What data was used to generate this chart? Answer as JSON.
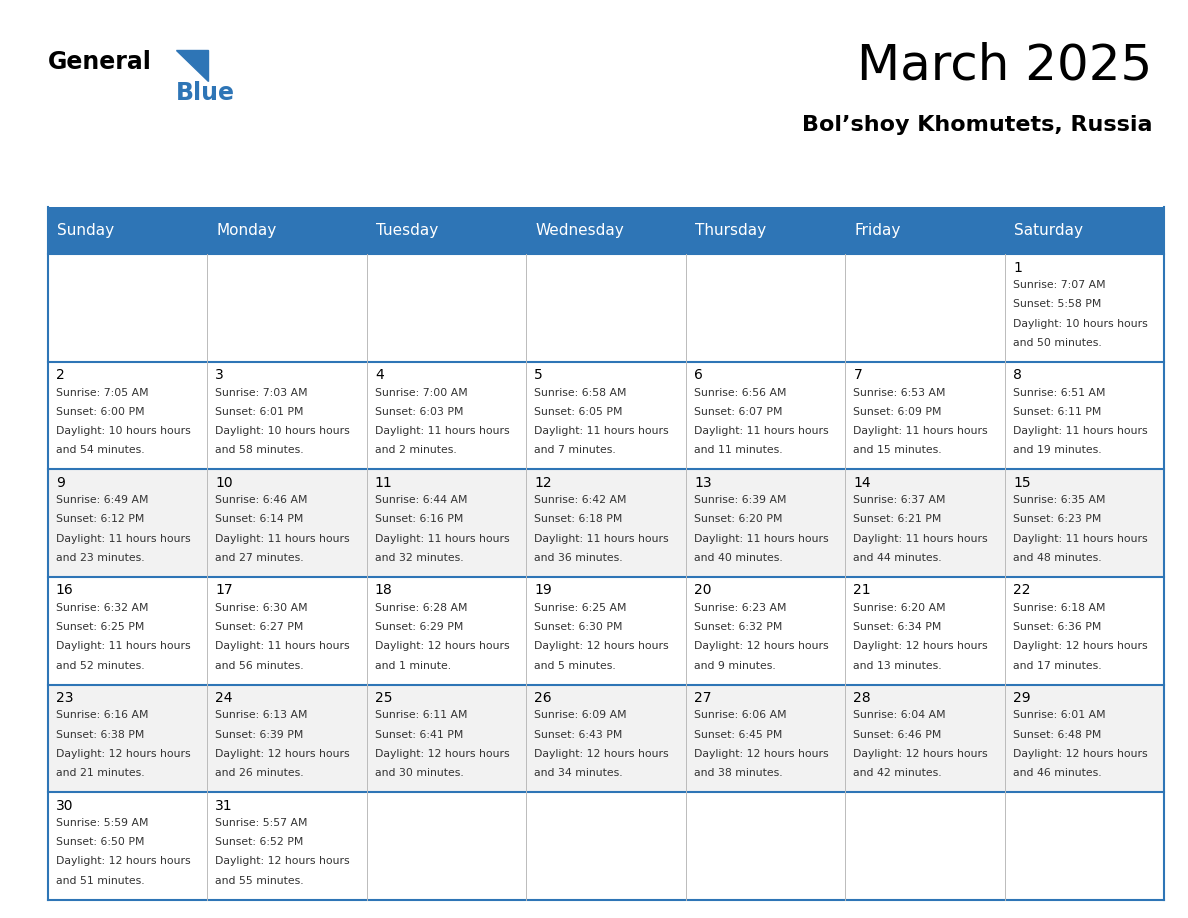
{
  "title": "March 2025",
  "subtitle": "Bol’shoy Khomutets, Russia",
  "header_bg": "#2E75B6",
  "header_text_color": "#FFFFFF",
  "day_names": [
    "Sunday",
    "Monday",
    "Tuesday",
    "Wednesday",
    "Thursday",
    "Friday",
    "Saturday"
  ],
  "alt_row_bg": "#F2F2F2",
  "normal_row_bg": "#FFFFFF",
  "border_color": "#2E75B6",
  "row_bg_colors": [
    "#FFFFFF",
    "#FFFFFF",
    "#F2F2F2",
    "#FFFFFF",
    "#F2F2F2",
    "#FFFFFF"
  ],
  "calendar_data": [
    [
      null,
      null,
      null,
      null,
      null,
      null,
      {
        "day": 1,
        "sunrise": "7:07 AM",
        "sunset": "5:58 PM",
        "daylight": "10 hours and 50 minutes"
      }
    ],
    [
      {
        "day": 2,
        "sunrise": "7:05 AM",
        "sunset": "6:00 PM",
        "daylight": "10 hours and 54 minutes"
      },
      {
        "day": 3,
        "sunrise": "7:03 AM",
        "sunset": "6:01 PM",
        "daylight": "10 hours and 58 minutes"
      },
      {
        "day": 4,
        "sunrise": "7:00 AM",
        "sunset": "6:03 PM",
        "daylight": "11 hours and 2 minutes"
      },
      {
        "day": 5,
        "sunrise": "6:58 AM",
        "sunset": "6:05 PM",
        "daylight": "11 hours and 7 minutes"
      },
      {
        "day": 6,
        "sunrise": "6:56 AM",
        "sunset": "6:07 PM",
        "daylight": "11 hours and 11 minutes"
      },
      {
        "day": 7,
        "sunrise": "6:53 AM",
        "sunset": "6:09 PM",
        "daylight": "11 hours and 15 minutes"
      },
      {
        "day": 8,
        "sunrise": "6:51 AM",
        "sunset": "6:11 PM",
        "daylight": "11 hours and 19 minutes"
      }
    ],
    [
      {
        "day": 9,
        "sunrise": "6:49 AM",
        "sunset": "6:12 PM",
        "daylight": "11 hours and 23 minutes"
      },
      {
        "day": 10,
        "sunrise": "6:46 AM",
        "sunset": "6:14 PM",
        "daylight": "11 hours and 27 minutes"
      },
      {
        "day": 11,
        "sunrise": "6:44 AM",
        "sunset": "6:16 PM",
        "daylight": "11 hours and 32 minutes"
      },
      {
        "day": 12,
        "sunrise": "6:42 AM",
        "sunset": "6:18 PM",
        "daylight": "11 hours and 36 minutes"
      },
      {
        "day": 13,
        "sunrise": "6:39 AM",
        "sunset": "6:20 PM",
        "daylight": "11 hours and 40 minutes"
      },
      {
        "day": 14,
        "sunrise": "6:37 AM",
        "sunset": "6:21 PM",
        "daylight": "11 hours and 44 minutes"
      },
      {
        "day": 15,
        "sunrise": "6:35 AM",
        "sunset": "6:23 PM",
        "daylight": "11 hours and 48 minutes"
      }
    ],
    [
      {
        "day": 16,
        "sunrise": "6:32 AM",
        "sunset": "6:25 PM",
        "daylight": "11 hours and 52 minutes"
      },
      {
        "day": 17,
        "sunrise": "6:30 AM",
        "sunset": "6:27 PM",
        "daylight": "11 hours and 56 minutes"
      },
      {
        "day": 18,
        "sunrise": "6:28 AM",
        "sunset": "6:29 PM",
        "daylight": "12 hours and 1 minute"
      },
      {
        "day": 19,
        "sunrise": "6:25 AM",
        "sunset": "6:30 PM",
        "daylight": "12 hours and 5 minutes"
      },
      {
        "day": 20,
        "sunrise": "6:23 AM",
        "sunset": "6:32 PM",
        "daylight": "12 hours and 9 minutes"
      },
      {
        "day": 21,
        "sunrise": "6:20 AM",
        "sunset": "6:34 PM",
        "daylight": "12 hours and 13 minutes"
      },
      {
        "day": 22,
        "sunrise": "6:18 AM",
        "sunset": "6:36 PM",
        "daylight": "12 hours and 17 minutes"
      }
    ],
    [
      {
        "day": 23,
        "sunrise": "6:16 AM",
        "sunset": "6:38 PM",
        "daylight": "12 hours and 21 minutes"
      },
      {
        "day": 24,
        "sunrise": "6:13 AM",
        "sunset": "6:39 PM",
        "daylight": "12 hours and 26 minutes"
      },
      {
        "day": 25,
        "sunrise": "6:11 AM",
        "sunset": "6:41 PM",
        "daylight": "12 hours and 30 minutes"
      },
      {
        "day": 26,
        "sunrise": "6:09 AM",
        "sunset": "6:43 PM",
        "daylight": "12 hours and 34 minutes"
      },
      {
        "day": 27,
        "sunrise": "6:06 AM",
        "sunset": "6:45 PM",
        "daylight": "12 hours and 38 minutes"
      },
      {
        "day": 28,
        "sunrise": "6:04 AM",
        "sunset": "6:46 PM",
        "daylight": "12 hours and 42 minutes"
      },
      {
        "day": 29,
        "sunrise": "6:01 AM",
        "sunset": "6:48 PM",
        "daylight": "12 hours and 46 minutes"
      }
    ],
    [
      {
        "day": 30,
        "sunrise": "5:59 AM",
        "sunset": "6:50 PM",
        "daylight": "12 hours and 51 minutes"
      },
      {
        "day": 31,
        "sunrise": "5:57 AM",
        "sunset": "6:52 PM",
        "daylight": "12 hours and 55 minutes"
      },
      null,
      null,
      null,
      null,
      null
    ]
  ]
}
